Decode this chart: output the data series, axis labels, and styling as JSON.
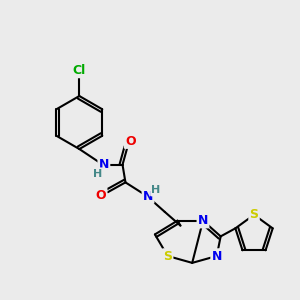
{
  "bg_color": "#ebebeb",
  "atom_colors": {
    "C": "#000000",
    "N": "#0000ee",
    "O": "#ee0000",
    "S": "#cccc00",
    "Cl": "#00aa00",
    "H": "#448888"
  },
  "bond_color": "#000000",
  "bond_width": 1.5,
  "font_size": 9
}
